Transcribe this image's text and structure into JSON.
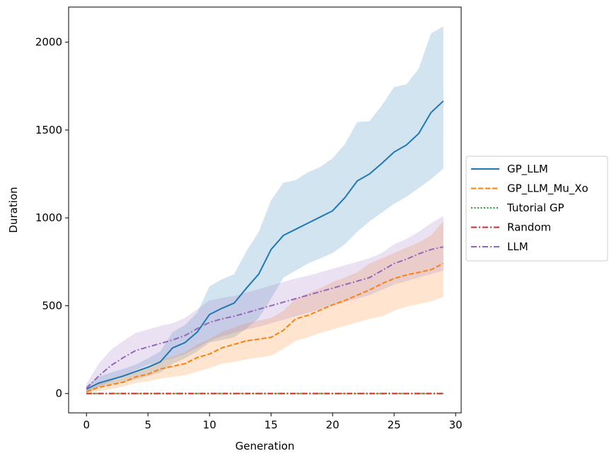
{
  "chart_data": {
    "type": "line",
    "title": "",
    "xlabel": "Generation",
    "ylabel": "Duration",
    "xlim": [
      -1.45,
      30.45
    ],
    "ylim": [
      -110,
      2200
    ],
    "x_ticks": [
      0,
      5,
      10,
      15,
      20,
      25,
      30
    ],
    "y_ticks": [
      0,
      500,
      1000,
      1500,
      2000
    ],
    "x_tick_labels": [
      "0",
      "5",
      "10",
      "15",
      "20",
      "25",
      "30"
    ],
    "y_tick_labels": [
      "0",
      "500",
      "1000",
      "1500",
      "2000"
    ],
    "grid": false,
    "legend_position": "right, outside plot",
    "x": [
      0,
      1,
      2,
      3,
      4,
      5,
      6,
      7,
      8,
      9,
      10,
      11,
      12,
      13,
      14,
      15,
      16,
      17,
      18,
      19,
      20,
      21,
      22,
      23,
      24,
      25,
      26,
      27,
      28,
      29
    ],
    "series": [
      {
        "name": "GP_LLM",
        "color": "#1f77b4",
        "dash": "solid",
        "values": [
          25,
          60,
          80,
          100,
          125,
          150,
          180,
          260,
          290,
          350,
          450,
          485,
          515,
          600,
          680,
          820,
          900,
          935,
          970,
          1005,
          1040,
          1115,
          1210,
          1250,
          1310,
          1375,
          1415,
          1480,
          1600,
          1665
        ],
        "lower": [
          5,
          35,
          50,
          65,
          80,
          100,
          120,
          170,
          200,
          240,
          290,
          305,
          320,
          370,
          430,
          540,
          660,
          700,
          740,
          770,
          800,
          850,
          920,
          980,
          1030,
          1080,
          1120,
          1170,
          1220,
          1280
        ],
        "upper": [
          45,
          95,
          120,
          140,
          165,
          200,
          240,
          350,
          390,
          460,
          610,
          650,
          680,
          810,
          920,
          1100,
          1200,
          1215,
          1260,
          1290,
          1340,
          1420,
          1545,
          1550,
          1640,
          1745,
          1760,
          1850,
          2050,
          2090
        ]
      },
      {
        "name": "GP_LLM_Mu_Xo",
        "color": "#ff7f0e",
        "dash": "dashed",
        "values": [
          10,
          35,
          50,
          65,
          95,
          110,
          140,
          155,
          170,
          205,
          225,
          260,
          280,
          300,
          310,
          320,
          360,
          425,
          445,
          475,
          505,
          530,
          560,
          590,
          625,
          655,
          675,
          690,
          705,
          740
        ],
        "lower": [
          0,
          15,
          25,
          40,
          60,
          70,
          85,
          95,
          105,
          125,
          145,
          170,
          180,
          195,
          205,
          215,
          255,
          300,
          320,
          345,
          365,
          385,
          405,
          425,
          440,
          470,
          495,
          510,
          525,
          550
        ],
        "upper": [
          25,
          60,
          80,
          100,
          130,
          155,
          190,
          210,
          235,
          280,
          310,
          350,
          375,
          400,
          415,
          430,
          470,
          540,
          570,
          600,
          635,
          660,
          690,
          740,
          770,
          800,
          830,
          860,
          900,
          980
        ]
      },
      {
        "name": "Tutorial GP",
        "color": "#2ca02c",
        "dash": "dotted",
        "values": [
          0,
          0,
          0,
          0,
          0,
          0,
          0,
          0,
          0,
          0,
          0,
          0,
          0,
          0,
          0,
          0,
          0,
          0,
          0,
          0,
          0,
          0,
          0,
          0,
          0,
          0,
          0,
          0,
          0,
          0
        ]
      },
      {
        "name": "Random",
        "color": "#d62728",
        "dash": "dashdot",
        "values": [
          0,
          0,
          0,
          0,
          0,
          0,
          0,
          0,
          0,
          0,
          0,
          0,
          0,
          0,
          0,
          0,
          0,
          0,
          0,
          0,
          0,
          0,
          0,
          0,
          0,
          0,
          0,
          0,
          0,
          0
        ]
      },
      {
        "name": "LLM",
        "color": "#9467bd",
        "dash": "dashdot",
        "values": [
          30,
          100,
          160,
          205,
          245,
          265,
          285,
          305,
          330,
          370,
          405,
          425,
          440,
          460,
          480,
          500,
          520,
          540,
          560,
          580,
          600,
          620,
          640,
          660,
          700,
          740,
          765,
          795,
          820,
          835
        ],
        "lower": [
          10,
          40,
          70,
          100,
          135,
          165,
          185,
          200,
          225,
          260,
          300,
          325,
          345,
          365,
          380,
          400,
          420,
          440,
          460,
          480,
          500,
          520,
          540,
          560,
          590,
          620,
          640,
          660,
          680,
          700
        ],
        "upper": [
          55,
          170,
          250,
          300,
          345,
          365,
          385,
          400,
          430,
          480,
          530,
          545,
          555,
          575,
          595,
          615,
          635,
          655,
          670,
          690,
          710,
          730,
          750,
          770,
          800,
          850,
          880,
          920,
          970,
          1010
        ]
      }
    ]
  }
}
